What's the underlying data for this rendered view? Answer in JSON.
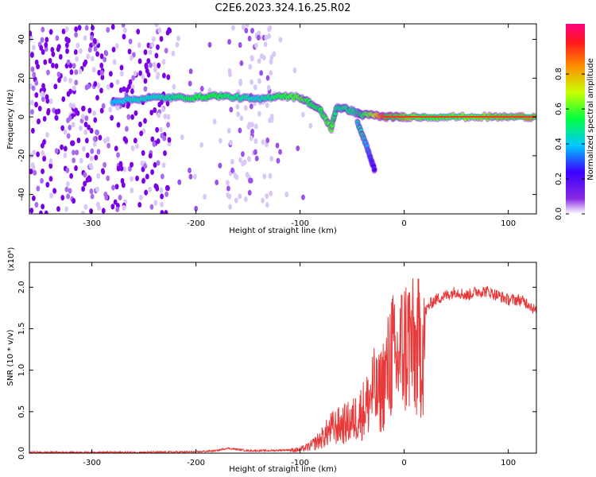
{
  "title": "C2E6.2023.324.16.25.R02",
  "colors": {
    "spectro_low": "#7a00e6",
    "spectro_faint": "#d9c8f5",
    "snr_line": "#e83a3a",
    "frame": "#000000"
  },
  "chart_data": [
    {
      "type": "heatmap",
      "name": "spectrogram",
      "xlabel": "Height of straight line (km)",
      "ylabel": "Frequency (Hz)",
      "xlim": [
        -360,
        127
      ],
      "ylim": [
        -50,
        48
      ],
      "xticks": [
        -300,
        -200,
        -100,
        0,
        100
      ],
      "xtick_labels": [
        "-300",
        "-200",
        "-100",
        "0",
        "100"
      ],
      "yticks": [
        -40,
        -20,
        0,
        20,
        40
      ],
      "ytick_labels": [
        "-40",
        "-20",
        "0",
        "20",
        "40"
      ],
      "colorbar": {
        "label": "Normalized spectral amplitude",
        "range": [
          0,
          1
        ],
        "ticks": [
          0,
          0.2,
          0.4,
          0.6,
          0.8
        ],
        "tick_labels": [
          "0.0",
          "0.2",
          "0.4",
          "0.6",
          "0.8"
        ],
        "colormap": "rainbow (white-purple-blue-cyan-green-yellow-red-magenta)"
      },
      "ridge": {
        "x": [
          -280,
          -260,
          -240,
          -220,
          -200,
          -180,
          -160,
          -140,
          -120,
          -100,
          -90,
          -80,
          -70,
          -65,
          -55,
          -45,
          -40,
          -30,
          -20,
          -10,
          0,
          20,
          50,
          80,
          100,
          127
        ],
        "y": [
          8,
          9,
          10,
          10,
          10,
          11,
          10,
          9,
          11,
          10,
          7,
          3,
          -6,
          5,
          4,
          2,
          1,
          1,
          0,
          0,
          0,
          0,
          0,
          0,
          0,
          0
        ],
        "amplitude": [
          0.35,
          0.4,
          0.4,
          0.45,
          0.5,
          0.5,
          0.45,
          0.4,
          0.5,
          0.55,
          0.5,
          0.5,
          0.55,
          0.45,
          0.45,
          0.45,
          0.5,
          0.6,
          0.85,
          0.8,
          0.75,
          0.55,
          0.6,
          0.7,
          0.75,
          0.8
        ]
      },
      "branch": {
        "x": [
          -45,
          -40,
          -36,
          -32,
          -28
        ],
        "y": [
          -2,
          -10,
          -15,
          -22,
          -28
        ],
        "amplitude": [
          0.4,
          0.45,
          0.35,
          0.25,
          0.2
        ]
      }
    },
    {
      "type": "line",
      "name": "snr",
      "xlabel": "Height of straight line (km)",
      "ylabel": "SNR (10 * v/v)",
      "yscale_label": "(x10⁴)",
      "xlim": [
        -360,
        127
      ],
      "ylim": [
        0,
        2.3
      ],
      "xticks": [
        -300,
        -200,
        -100,
        0,
        100
      ],
      "xtick_labels": [
        "-300",
        "-200",
        "-100",
        "0",
        "100"
      ],
      "yticks": [
        0,
        0.5,
        1.0,
        1.5,
        2.0
      ],
      "ytick_labels": [
        "0.0",
        "0.5",
        "1.0",
        "1.5",
        "2.0"
      ],
      "series": [
        {
          "x": [
            -360,
            -300,
            -250,
            -200,
            -180,
            -170,
            -150,
            -130,
            -110,
            -100,
            -90,
            -80,
            -70,
            -60,
            -50,
            -40,
            -35,
            -30,
            -25,
            -20,
            -15,
            -12,
            -10,
            -8,
            -5,
            0,
            5,
            10,
            15,
            20,
            25,
            30,
            40,
            50,
            60,
            70,
            80,
            90,
            100,
            110,
            120,
            127
          ],
          "values": [
            0.01,
            0.01,
            0.01,
            0.015,
            0.03,
            0.06,
            0.03,
            0.03,
            0.04,
            0.05,
            0.1,
            0.2,
            0.35,
            0.4,
            0.45,
            0.6,
            0.7,
            0.9,
            0.8,
            1.0,
            1.2,
            1.5,
            1.3,
            1.2,
            1.4,
            1.5,
            1.6,
            1.4,
            1.5,
            1.7,
            1.8,
            1.85,
            1.9,
            1.95,
            1.9,
            1.95,
            1.95,
            1.9,
            1.85,
            1.85,
            1.8,
            1.7
          ]
        }
      ]
    }
  ]
}
